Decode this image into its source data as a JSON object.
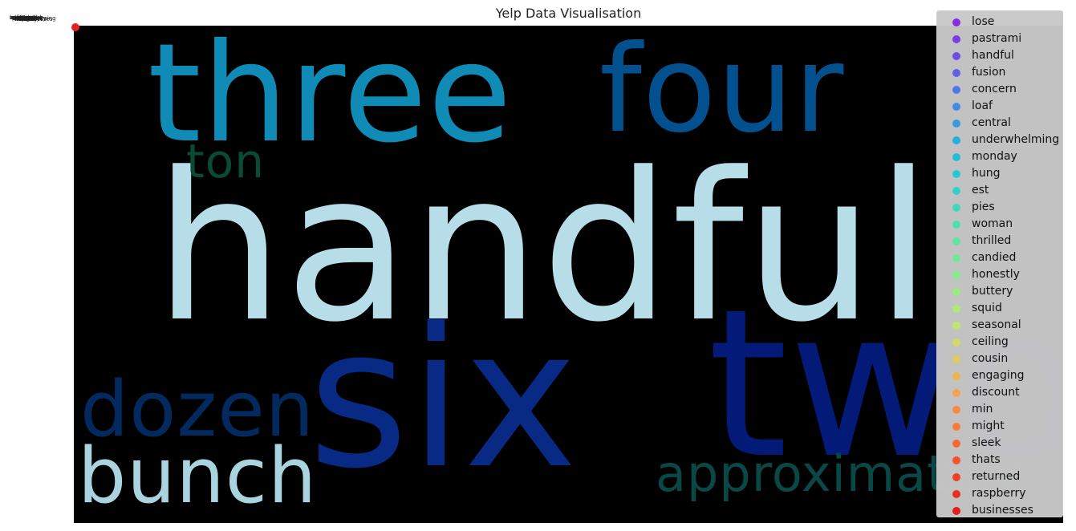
{
  "chart_data": {
    "type": "scatter",
    "title": "Yelp Data Visualisation",
    "background": "wordcloud",
    "wordcloud_words": [
      {
        "text": "handful",
        "color": "#b7dde8"
      },
      {
        "text": "three",
        "color": "#0f8bb5"
      },
      {
        "text": "four",
        "color": "#03508f"
      },
      {
        "text": "six",
        "color": "#082a85"
      },
      {
        "text": "two",
        "color": "#041a78"
      },
      {
        "text": "dozen",
        "color": "#032a5e"
      },
      {
        "text": "bunch",
        "color": "#a9d3df"
      },
      {
        "text": "ton",
        "color": "#0a4b33"
      },
      {
        "text": "approximately",
        "color": "#0a4845"
      }
    ],
    "legend_location": "upper right",
    "series": [
      {
        "name": "lose",
        "color": "#8b2be2"
      },
      {
        "name": "pastrami",
        "color": "#7b3ce4"
      },
      {
        "name": "handful",
        "color": "#6c4de6"
      },
      {
        "name": "fusion",
        "color": "#5f61e6"
      },
      {
        "name": "concern",
        "color": "#4f76e6"
      },
      {
        "name": "loaf",
        "color": "#428ae2"
      },
      {
        "name": "central",
        "color": "#389bdd"
      },
      {
        "name": "underwhelming",
        "color": "#2aaee0"
      },
      {
        "name": "monday",
        "color": "#22bcd9"
      },
      {
        "name": "hung",
        "color": "#25c8d2"
      },
      {
        "name": "est",
        "color": "#31d2c8"
      },
      {
        "name": "pies",
        "color": "#3ed9bd"
      },
      {
        "name": "woman",
        "color": "#4ee0b1"
      },
      {
        "name": "thrilled",
        "color": "#5fe5a4"
      },
      {
        "name": "candied",
        "color": "#70e997"
      },
      {
        "name": "honestly",
        "color": "#83ec8b"
      },
      {
        "name": "buttery",
        "color": "#97ee7f"
      },
      {
        "name": "squid",
        "color": "#acec74"
      },
      {
        "name": "seasonal",
        "color": "#c0e56b"
      },
      {
        "name": "ceiling",
        "color": "#d2d863"
      },
      {
        "name": "cousin",
        "color": "#e2c95c"
      },
      {
        "name": "engaging",
        "color": "#efb553"
      },
      {
        "name": "discount",
        "color": "#f6a24b"
      },
      {
        "name": "min",
        "color": "#f98c42"
      },
      {
        "name": "might",
        "color": "#fb7a3b"
      },
      {
        "name": "sleek",
        "color": "#fb6634"
      },
      {
        "name": "thats",
        "color": "#f7532c"
      },
      {
        "name": "returned",
        "color": "#f13f25"
      },
      {
        "name": "raspberry",
        "color": "#ea2d1f"
      },
      {
        "name": "businesses",
        "color": "#e51d1d"
      }
    ]
  }
}
